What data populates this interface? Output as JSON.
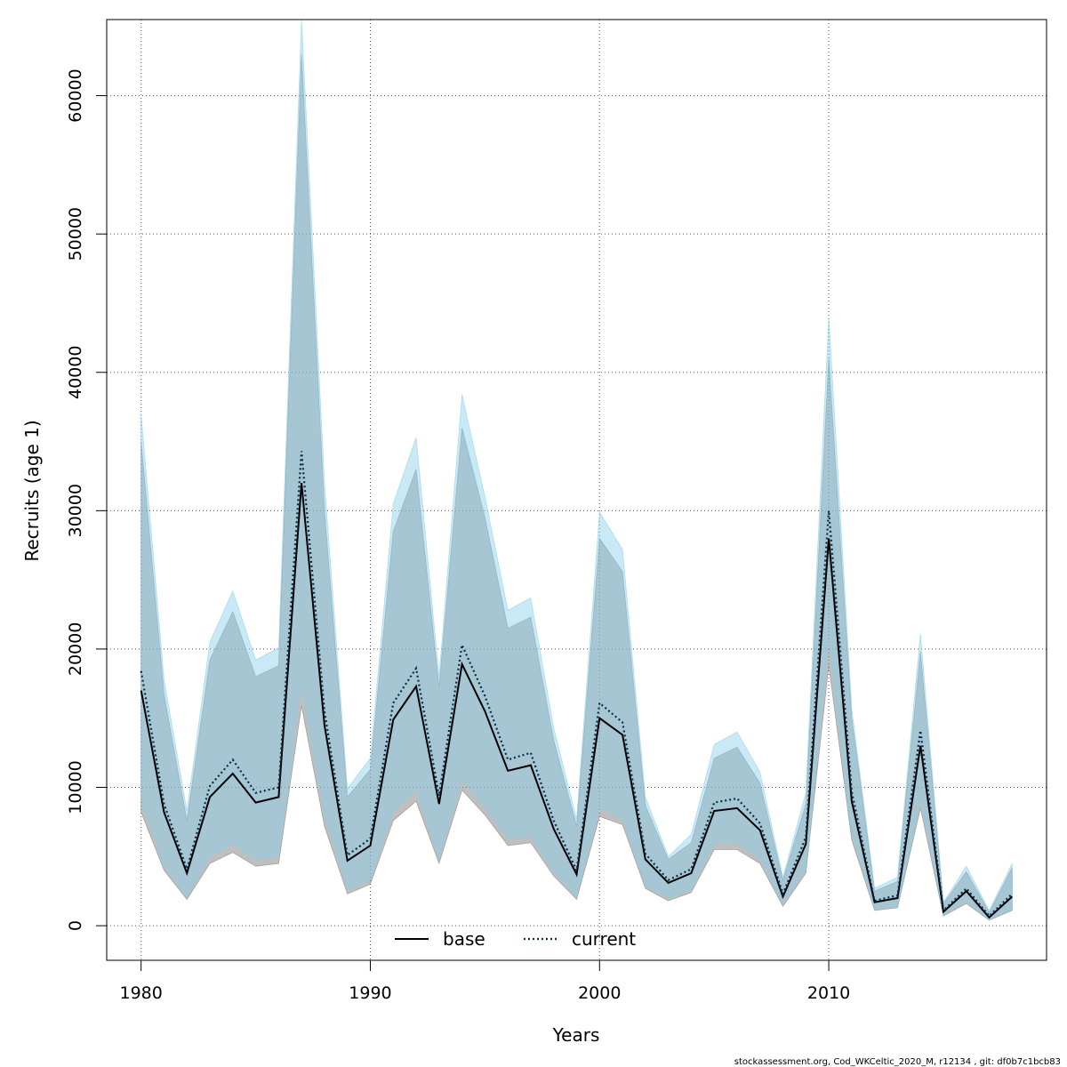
{
  "chart_data": {
    "type": "line",
    "xlabel": "Years",
    "ylabel": "Recruits (age 1)",
    "xlim": [
      1978.5,
      2019.5
    ],
    "ylim": [
      -2500,
      65500
    ],
    "x_ticks": [
      1980,
      1990,
      2000,
      2010
    ],
    "y_ticks": [
      0,
      10000,
      20000,
      30000,
      40000,
      50000,
      60000
    ],
    "grid": true,
    "legend_position": "bottom-center",
    "x": [
      1980,
      1981,
      1982,
      1983,
      1984,
      1985,
      1986,
      1987,
      1988,
      1989,
      1990,
      1991,
      1992,
      1993,
      1994,
      1995,
      1996,
      1997,
      1998,
      1999,
      2000,
      2001,
      2002,
      2003,
      2004,
      2005,
      2006,
      2007,
      2008,
      2009,
      2010,
      2011,
      2012,
      2013,
      2014,
      2015,
      2016,
      2017,
      2018
    ],
    "series": [
      {
        "name": "base",
        "color": "#000000",
        "line_style": "solid",
        "band_color": "#808080",
        "values": [
          17000,
          8200,
          3800,
          9300,
          11000,
          8900,
          9300,
          32000,
          14500,
          4700,
          5800,
          14900,
          17300,
          8800,
          18900,
          15500,
          11200,
          11600,
          7000,
          3700,
          15000,
          13800,
          4800,
          3100,
          3800,
          8300,
          8500,
          6900,
          2100,
          5900,
          28000,
          9000,
          1700,
          2000,
          13000,
          1000,
          2500,
          600,
          2100
        ],
        "lower": [
          8200,
          4000,
          1900,
          4500,
          5300,
          4300,
          4500,
          15900,
          7200,
          2300,
          3000,
          7600,
          9000,
          4500,
          9800,
          8000,
          5800,
          6000,
          3600,
          1900,
          7900,
          7300,
          2700,
          1800,
          2400,
          5500,
          5500,
          4500,
          1400,
          3800,
          18800,
          6200,
          1100,
          1300,
          8500,
          700,
          1600,
          400,
          1100
        ],
        "upper": [
          35000,
          16700,
          7600,
          19200,
          22700,
          18000,
          18800,
          63000,
          30000,
          9300,
          11300,
          28500,
          33000,
          17200,
          36000,
          29500,
          21500,
          22300,
          13400,
          7200,
          28000,
          25600,
          8700,
          4800,
          6000,
          12100,
          12900,
          10300,
          3300,
          8800,
          41000,
          15000,
          2500,
          3200,
          19800,
          1600,
          3900,
          950,
          4200
        ]
      },
      {
        "name": "current",
        "color": "#0b2d4a",
        "line_style": "dotted",
        "band_color": "#87ceeb",
        "values": [
          18400,
          8800,
          4100,
          10100,
          12000,
          9600,
          10000,
          34300,
          15500,
          5100,
          6300,
          16100,
          18600,
          9400,
          20300,
          16600,
          12000,
          12500,
          7600,
          4000,
          16100,
          14700,
          5200,
          3300,
          4100,
          8900,
          9200,
          7400,
          2300,
          6400,
          30000,
          9700,
          1800,
          2200,
          14100,
          1100,
          2700,
          700,
          2300
        ],
        "lower": [
          9100,
          4300,
          2100,
          5000,
          5900,
          4800,
          5000,
          17400,
          8000,
          2600,
          3300,
          8300,
          9800,
          4900,
          10600,
          8600,
          6300,
          6500,
          3900,
          2100,
          8500,
          7800,
          2900,
          2000,
          2600,
          6000,
          6000,
          4900,
          1600,
          4100,
          20500,
          6700,
          1200,
          1400,
          9200,
          800,
          1800,
          450,
          1200
        ],
        "upper": [
          37000,
          17800,
          8300,
          20500,
          24200,
          19200,
          20100,
          66000,
          32000,
          9900,
          12100,
          30500,
          35300,
          18000,
          38400,
          31000,
          22800,
          23700,
          14300,
          7700,
          29900,
          27200,
          9300,
          5000,
          6600,
          13100,
          14000,
          11100,
          3500,
          9600,
          44000,
          15700,
          2700,
          3500,
          21100,
          1700,
          4300,
          1100,
          4500
        ]
      }
    ]
  },
  "footer": "stockassessment.org, Cod_WKCeltic_2020_M, r12134 , git: df0b7c1bcb83"
}
